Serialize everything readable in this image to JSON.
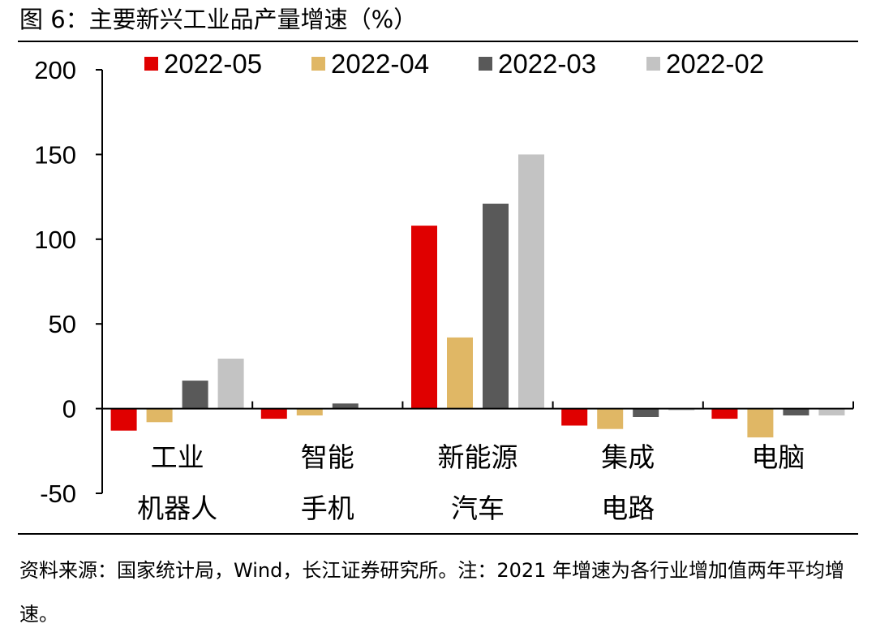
{
  "figure": {
    "title": "图 6：主要新兴工业品产量增速（%）",
    "source": "资料来源：国家统计局，Wind，长江证券研究所。注：2021 年增速为各行业增加值两年平均增速。"
  },
  "chart_data": {
    "type": "bar",
    "title": "主要新兴工业品产量增速（%）",
    "xlabel": "",
    "ylabel": "",
    "ylim": [
      -50,
      200
    ],
    "yticks": [
      200,
      150,
      100,
      50,
      0,
      -50
    ],
    "legend_position": "top",
    "categories": [
      [
        "工业",
        "机器人"
      ],
      [
        "智能",
        "手机"
      ],
      [
        "新能源",
        "汽车"
      ],
      [
        "集成",
        "电路"
      ],
      [
        "电脑"
      ]
    ],
    "series": [
      {
        "name": "2022-05",
        "color": "#e00000",
        "values": [
          -13,
          -6,
          108,
          -10,
          -6
        ]
      },
      {
        "name": "2022-04",
        "color": "#e0b765",
        "values": [
          -8,
          -4,
          42,
          -12,
          -17
        ]
      },
      {
        "name": "2022-03",
        "color": "#595959",
        "values": [
          16.5,
          3,
          121,
          -5,
          -4
        ]
      },
      {
        "name": "2022-02",
        "color": "#c3c3c3",
        "values": [
          29.5,
          0,
          150,
          -1,
          -4
        ]
      }
    ]
  }
}
